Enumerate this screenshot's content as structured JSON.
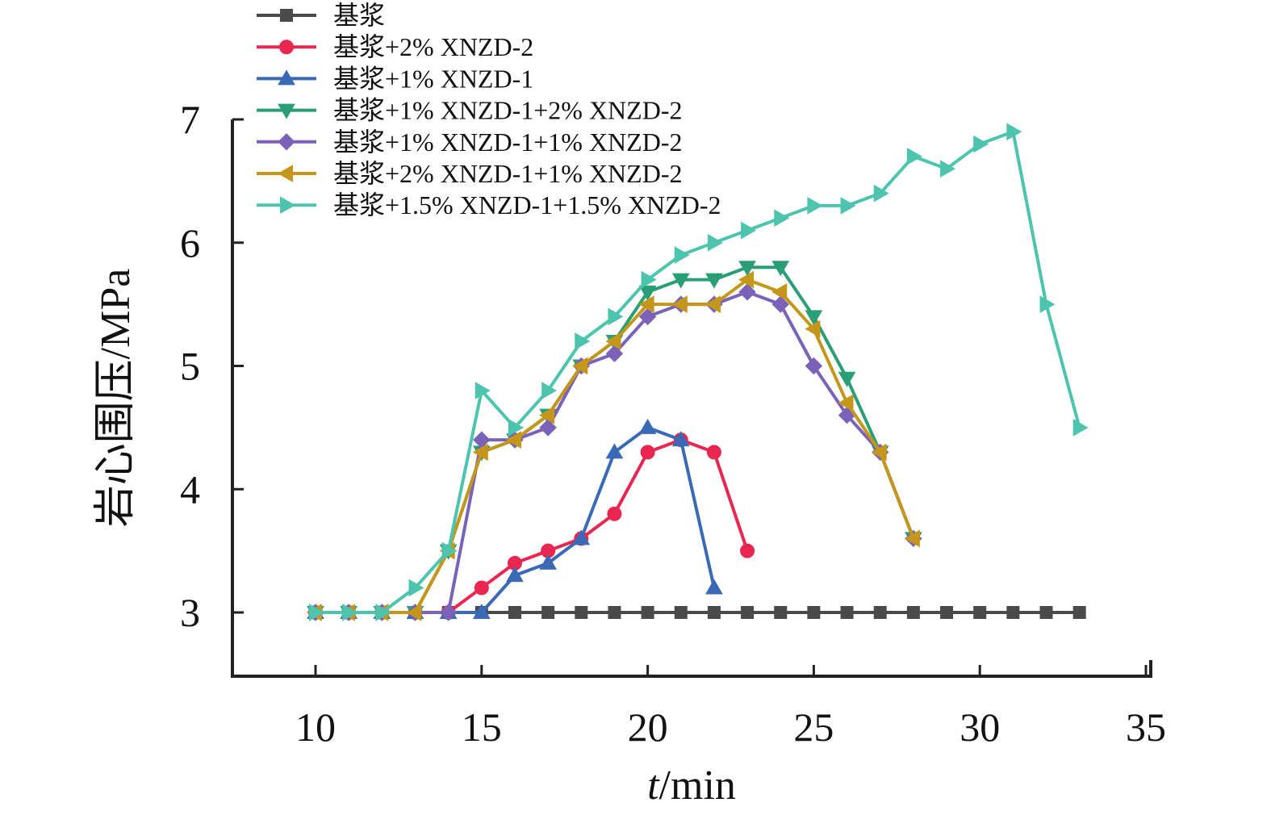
{
  "chart_data": {
    "type": "line",
    "xlabel_italic": "t",
    "xlabel_rest": "/min",
    "ylabel": "岩心围压/MPa",
    "xlim": [
      7.5,
      35
    ],
    "ylim": [
      2.5,
      7
    ],
    "xticks": [
      10,
      15,
      20,
      25,
      30,
      35
    ],
    "yticks": [
      3,
      4,
      5,
      6,
      7
    ],
    "legend_position": "top-left",
    "grid": false,
    "series": [
      {
        "name": "基浆",
        "color": "#4a4a4a",
        "marker": "square",
        "x": [
          10,
          11,
          12,
          13,
          14,
          15,
          16,
          17,
          18,
          19,
          20,
          21,
          22,
          23,
          24,
          25,
          26,
          27,
          28,
          29,
          30,
          31,
          32,
          33
        ],
        "y": [
          3,
          3,
          3,
          3,
          3,
          3,
          3,
          3,
          3,
          3,
          3,
          3,
          3,
          3,
          3,
          3,
          3,
          3,
          3,
          3,
          3,
          3,
          3,
          3
        ]
      },
      {
        "name": "基浆+2% XNZD-2",
        "color": "#e8264f",
        "marker": "circle",
        "x": [
          10,
          11,
          12,
          13,
          14,
          15,
          16,
          17,
          18,
          19,
          20,
          21,
          22,
          23
        ],
        "y": [
          3,
          3,
          3,
          3,
          3,
          3.2,
          3.4,
          3.5,
          3.6,
          3.8,
          4.3,
          4.4,
          4.3,
          3.5
        ]
      },
      {
        "name": "基浆+1% XNZD-1",
        "color": "#3a6ab5",
        "marker": "triangle-up",
        "x": [
          10,
          11,
          12,
          13,
          14,
          15,
          16,
          17,
          18,
          19,
          20,
          21,
          22
        ],
        "y": [
          3,
          3,
          3,
          3,
          3,
          3,
          3.3,
          3.4,
          3.6,
          4.3,
          4.5,
          4.4,
          3.2
        ]
      },
      {
        "name": "基浆+1% XNZD-1+2% XNZD-2",
        "color": "#2a9e76",
        "marker": "triangle-down",
        "x": [
          10,
          11,
          12,
          13,
          14,
          15,
          16,
          17,
          18,
          19,
          20,
          21,
          22,
          23,
          24,
          25,
          26,
          27,
          28
        ],
        "y": [
          3,
          3,
          3,
          3,
          3.5,
          4.3,
          4.4,
          4.6,
          5.0,
          5.2,
          5.6,
          5.7,
          5.7,
          5.8,
          5.8,
          5.4,
          4.9,
          4.3,
          3.6
        ]
      },
      {
        "name": "基浆+1% XNZD-1+1% XNZD-2",
        "color": "#7a62b8",
        "marker": "diamond",
        "x": [
          10,
          11,
          12,
          13,
          14,
          15,
          16,
          17,
          18,
          19,
          20,
          21,
          22,
          23,
          24,
          25,
          26,
          27,
          28
        ],
        "y": [
          3,
          3,
          3,
          3,
          3,
          4.4,
          4.4,
          4.5,
          5.0,
          5.1,
          5.4,
          5.5,
          5.5,
          5.6,
          5.5,
          5.0,
          4.6,
          4.3,
          3.6
        ]
      },
      {
        "name": "基浆+2% XNZD-1+1% XNZD-2",
        "color": "#c4961a",
        "marker": "triangle-left",
        "x": [
          10,
          11,
          12,
          13,
          14,
          15,
          16,
          17,
          18,
          19,
          20,
          21,
          22,
          23,
          24,
          25,
          26,
          27,
          28
        ],
        "y": [
          3,
          3,
          3,
          3,
          3.5,
          4.3,
          4.4,
          4.6,
          5.0,
          5.2,
          5.5,
          5.5,
          5.5,
          5.7,
          5.6,
          5.3,
          4.7,
          4.3,
          3.6
        ]
      },
      {
        "name": "基浆+1.5% XNZD-1+1.5% XNZD-2",
        "color": "#4dc4ad",
        "marker": "triangle-right",
        "x": [
          10,
          11,
          12,
          13,
          14,
          15,
          16,
          17,
          18,
          19,
          20,
          21,
          22,
          23,
          24,
          25,
          26,
          27,
          28,
          29,
          30,
          31,
          32,
          33
        ],
        "y": [
          3,
          3,
          3,
          3.2,
          3.5,
          4.8,
          4.5,
          4.8,
          5.2,
          5.4,
          5.7,
          5.9,
          6.0,
          6.1,
          6.2,
          6.3,
          6.3,
          6.4,
          6.7,
          6.6,
          6.8,
          6.9,
          5.5,
          4.5
        ]
      }
    ]
  }
}
